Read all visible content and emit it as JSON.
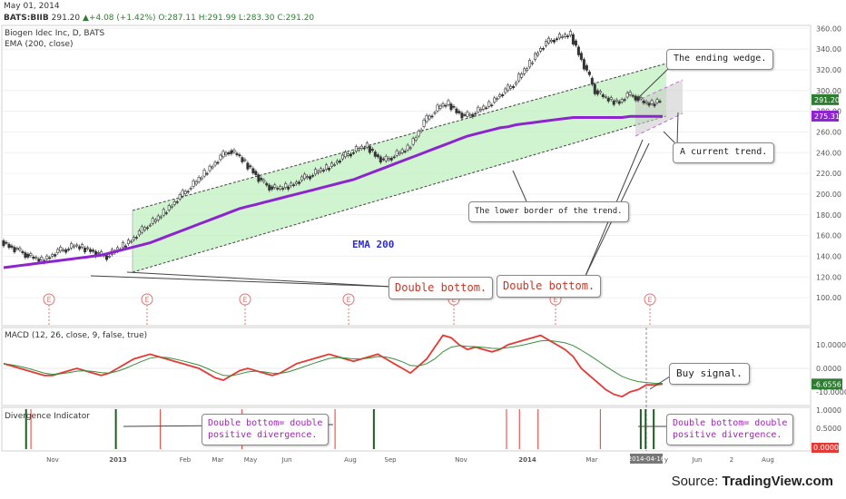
{
  "header": {
    "date": "May 01, 2014",
    "symbol": "BATS:BIIB",
    "price": "291.20",
    "change": "+4.08 (+1.42%)",
    "open": "O:287.11",
    "high": "H:291.99",
    "low": "L:283.30",
    "close": "C:291.20"
  },
  "panes": {
    "price_title": "Biogen Idec Inc, D, BATS",
    "ema_title": "EMA (200, close)",
    "macd_title": "MACD (12, 26, close, 9, false, true)",
    "div_title": "Divergence Indicator"
  },
  "annotations": {
    "ending_wedge": "The ending wedge.",
    "current_trend": "A current trend.",
    "lower_border": "The lower border of the trend.",
    "ema200": "EMA 200",
    "double_bottom_1": "Double bottom.",
    "double_bottom_2": "Double bottom.",
    "buy_signal": "Buy signal.",
    "div_1": "Double bottom= double\npositive divergence.",
    "div_2": "Double bottom= double\npositive divergence."
  },
  "source": {
    "prefix": "Source: ",
    "brand": "TradingView.com"
  },
  "colors": {
    "ema": "#8e24cf",
    "macd": "#e53935",
    "signal": "#388e3c",
    "channel": "#bff0bf",
    "div_pos": "#1b5e20",
    "div_neg": "#e53935"
  },
  "chart_data": {
    "type": "line",
    "symbol": "BATS:BIIB",
    "x_ticks": [
      "Nov",
      "2013",
      "Feb",
      "Mar",
      "May",
      "Jun",
      "Aug",
      "Sep",
      "Nov",
      "2014",
      "Mar",
      "2014-04-16",
      "y",
      "Jun",
      "2",
      "Aug"
    ],
    "price_axis": {
      "ticks": [
        360,
        340,
        320,
        300,
        280,
        260,
        240,
        220,
        200,
        180,
        160,
        140,
        120,
        100
      ],
      "current_price": "291.20",
      "ema_value": "275.31"
    },
    "macd_axis": {
      "ticks": [
        "10.0000",
        "0.0000",
        "-10.0000"
      ],
      "current": "-6.6556"
    },
    "div_axis": {
      "ticks": [
        "1.0000",
        "0.5000"
      ],
      "current": "0.0000"
    },
    "close": [
      155,
      150,
      146,
      142,
      138,
      136,
      140,
      145,
      147,
      150,
      148,
      146,
      142,
      140,
      145,
      150,
      156,
      163,
      170,
      175,
      182,
      190,
      198,
      205,
      212,
      220,
      228,
      236,
      242,
      238,
      230,
      222,
      212,
      207,
      205,
      207,
      210,
      215,
      218,
      222,
      225,
      230,
      236,
      240,
      244,
      246,
      238,
      232,
      236,
      240,
      244,
      256,
      270,
      278,
      285,
      287,
      280,
      275,
      278,
      282,
      286,
      294,
      300,
      306,
      316,
      326,
      338,
      346,
      350,
      352,
      354,
      336,
      318,
      300,
      294,
      290,
      289,
      296,
      294,
      288,
      287,
      291
    ],
    "ema200": [
      129,
      130,
      131,
      132,
      133,
      134,
      135,
      136,
      137,
      138,
      139,
      140,
      141,
      143,
      145,
      147,
      149,
      151,
      153,
      156,
      159,
      162,
      165,
      168,
      171,
      174,
      177,
      180,
      183,
      186,
      188,
      190,
      192,
      194,
      196,
      198,
      200,
      202,
      204,
      206,
      208,
      210,
      212,
      214,
      217,
      220,
      223,
      226,
      229,
      232,
      235,
      238,
      241,
      244,
      247,
      250,
      253,
      256,
      258,
      260,
      262,
      264,
      265,
      267,
      268,
      269,
      270,
      271,
      272,
      273,
      274,
      274,
      274,
      274,
      274,
      274,
      274,
      275,
      275,
      275,
      275,
      275
    ],
    "macd": [
      2,
      1,
      0,
      -1,
      -2,
      -3,
      -3,
      -2,
      -1,
      0,
      -1,
      -2,
      -3,
      -2,
      0,
      2,
      4,
      5,
      6,
      5,
      4,
      3,
      2,
      1,
      0,
      -2,
      -4,
      -5,
      -3,
      -1,
      0,
      -1,
      -2,
      -3,
      -2,
      0,
      2,
      3,
      4,
      5,
      6,
      5,
      4,
      3,
      4,
      5,
      6,
      4,
      2,
      0,
      -2,
      1,
      4,
      9,
      14,
      13,
      10,
      8,
      9,
      8,
      7,
      8,
      10,
      11,
      12,
      13,
      14,
      12,
      10,
      8,
      5,
      0,
      -3,
      -6,
      -9,
      -11,
      -12,
      -10,
      -9,
      -7,
      -7,
      -6.66
    ],
    "signal": [
      2,
      1.5,
      0.8,
      0,
      -1,
      -2,
      -2.5,
      -2.3,
      -1.8,
      -1.2,
      -1,
      -1.3,
      -1.8,
      -2,
      -1.2,
      0,
      1.5,
      3,
      4.3,
      4.8,
      4.6,
      4,
      3.2,
      2.3,
      1.4,
      0,
      -1.6,
      -3,
      -3.2,
      -2.4,
      -1.5,
      -1.2,
      -1.5,
      -2,
      -2.1,
      -1.5,
      -0.4,
      0.8,
      2,
      3.1,
      4.2,
      4.6,
      4.4,
      4,
      4,
      4.4,
      5,
      4.8,
      4,
      2.8,
      1.2,
      1,
      2,
      4,
      7,
      9,
      9.6,
      9.3,
      9.2,
      8.9,
      8.5,
      8.4,
      8.8,
      9.3,
      10,
      10.8,
      11.6,
      11.8,
      11.4,
      10.8,
      9.7,
      7.7,
      5.6,
      3.3,
      0.9,
      -1.3,
      -3.4,
      -4.7,
      -5.6,
      -6,
      -6.3,
      -6.4
    ],
    "divergence_bars": [
      {
        "pos": 0.03,
        "type": "positive"
      },
      {
        "pos": 0.036,
        "type": "negative"
      },
      {
        "pos": 0.141,
        "type": "positive"
      },
      {
        "pos": 0.196,
        "type": "negative"
      },
      {
        "pos": 0.297,
        "type": "negative"
      },
      {
        "pos": 0.412,
        "type": "negative"
      },
      {
        "pos": 0.46,
        "type": "positive"
      },
      {
        "pos": 0.624,
        "type": "negative"
      },
      {
        "pos": 0.64,
        "type": "negative"
      },
      {
        "pos": 0.663,
        "type": "negative"
      },
      {
        "pos": 0.74,
        "type": "negative"
      },
      {
        "pos": 0.79,
        "type": "positive"
      },
      {
        "pos": 0.796,
        "type": "positive"
      },
      {
        "pos": 0.806,
        "type": "positive"
      }
    ]
  }
}
